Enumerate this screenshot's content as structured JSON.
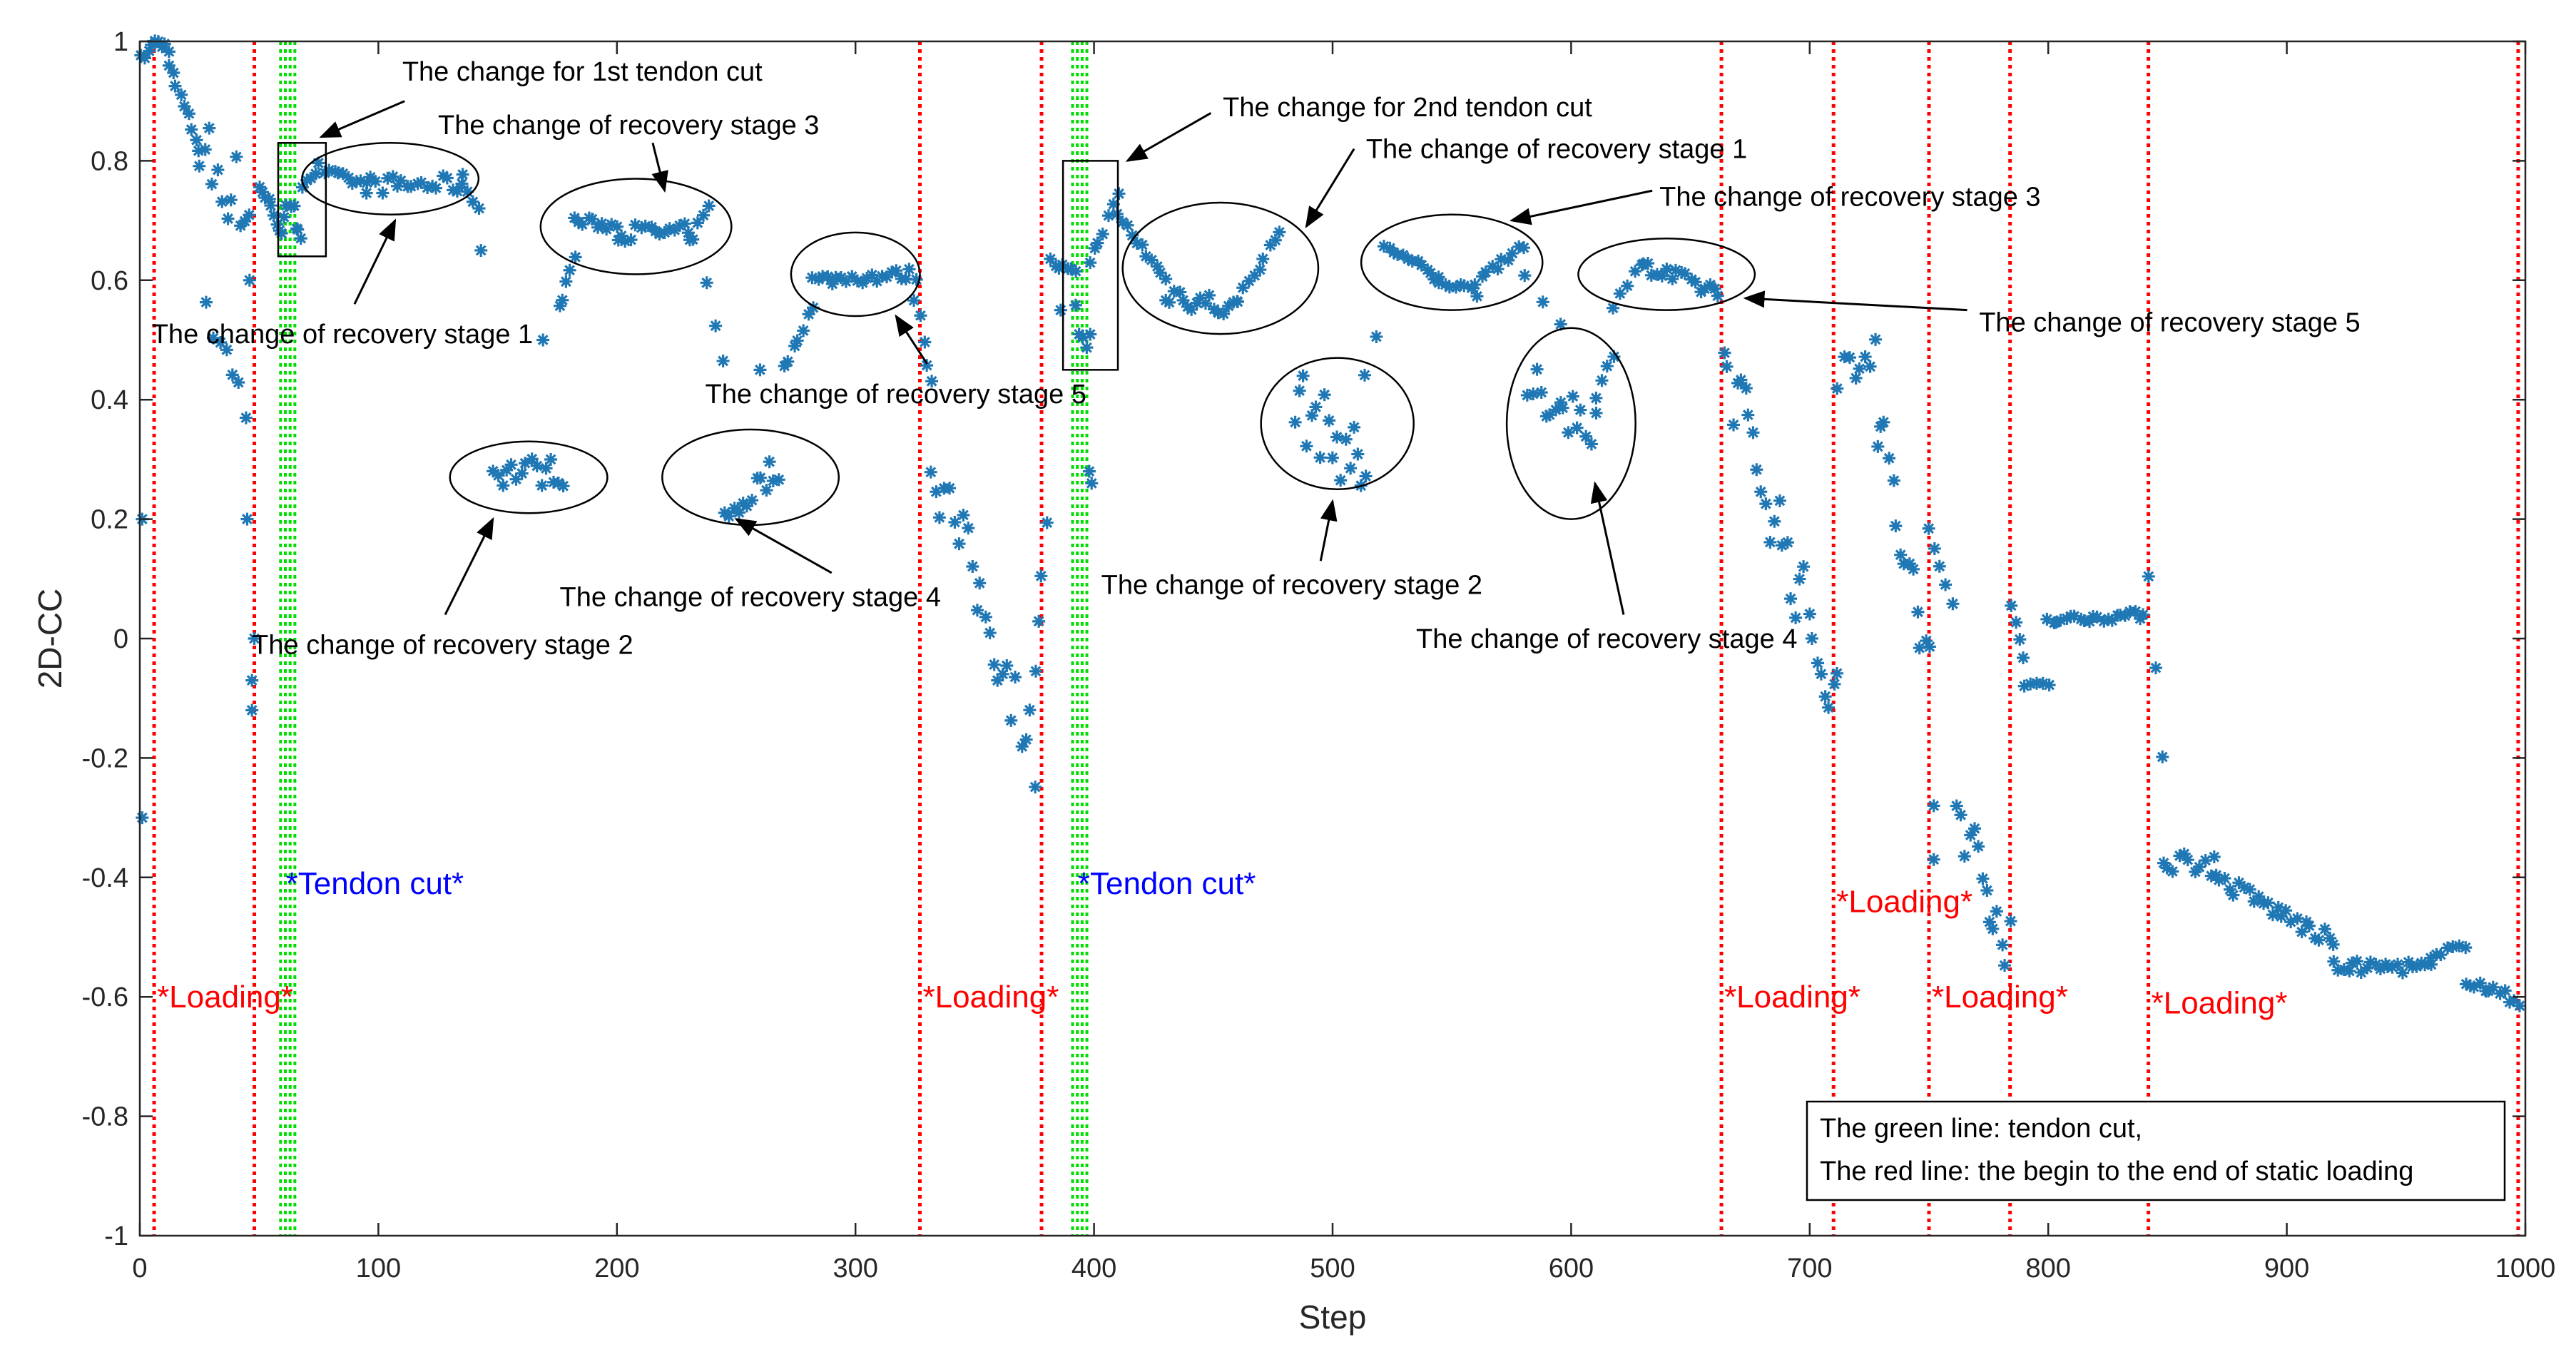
{
  "chart_data": {
    "type": "scatter",
    "xlabel": "Step",
    "ylabel": "2D-CC",
    "xlim": [
      0,
      1000
    ],
    "ylim": [
      -1,
      1
    ],
    "x_ticks": [
      "0",
      "100",
      "200",
      "300",
      "400",
      "500",
      "600",
      "700",
      "800",
      "900",
      "1000"
    ],
    "y_ticks": [
      "1",
      "0.8",
      "0.6",
      "0.4",
      "0.2",
      "0",
      "-0.2",
      "-0.4",
      "-0.6",
      "-0.8",
      "-1"
    ],
    "marker": "*",
    "marker_color": "#1f77b4",
    "red_line_color": "#ff0000",
    "green_line_color": "#00dd00",
    "red_lines": [
      6,
      48,
      327,
      378,
      663,
      710,
      750,
      784,
      842,
      997
    ],
    "green_lines": [
      59,
      61,
      63,
      65,
      391,
      393,
      395,
      397
    ],
    "loading_labels": [
      {
        "text": "*Loading*",
        "x": 6,
        "y": -0.6
      },
      {
        "text": "*Loading*",
        "x": 327,
        "y": -0.6
      },
      {
        "text": "*Loading*",
        "x": 663,
        "y": -0.6
      },
      {
        "text": "*Loading*",
        "x": 710,
        "y": -0.44
      },
      {
        "text": "*Loading*",
        "x": 750,
        "y": -0.6
      },
      {
        "text": "*Loading*",
        "x": 842,
        "y": -0.61
      }
    ],
    "tendon_labels": [
      {
        "text": "*Tendon cut*",
        "x": 60,
        "y": -0.41
      },
      {
        "text": "*Tendon cut*",
        "x": 392,
        "y": -0.41
      }
    ],
    "ellipses": [
      {
        "cx": 105,
        "cy": 0.77,
        "rx": 37,
        "ry": 0.06
      },
      {
        "cx": 208,
        "cy": 0.69,
        "rx": 40,
        "ry": 0.08
      },
      {
        "cx": 300,
        "cy": 0.61,
        "rx": 27,
        "ry": 0.07
      },
      {
        "cx": 453,
        "cy": 0.62,
        "rx": 41,
        "ry": 0.11
      },
      {
        "cx": 550,
        "cy": 0.63,
        "rx": 38,
        "ry": 0.08
      },
      {
        "cx": 640,
        "cy": 0.61,
        "rx": 37,
        "ry": 0.06
      },
      {
        "cx": 163,
        "cy": 0.27,
        "rx": 33,
        "ry": 0.06
      },
      {
        "cx": 256,
        "cy": 0.27,
        "rx": 37,
        "ry": 0.08
      },
      {
        "cx": 502,
        "cy": 0.36,
        "rx": 32,
        "ry": 0.11
      },
      {
        "cx": 600,
        "cy": 0.36,
        "rx": 27,
        "ry": 0.16
      }
    ],
    "rects": [
      {
        "x0": 58,
        "x1": 78,
        "y0": 0.64,
        "y1": 0.83
      },
      {
        "x0": 387,
        "x1": 410,
        "y0": 0.45,
        "y1": 0.8
      }
    ],
    "annotations": [
      {
        "text": "The change for 1st tendon cut",
        "x": 110,
        "y": 0.95,
        "ax": 76,
        "ay": 0.84,
        "tx": 111,
        "ty": 0.9
      },
      {
        "text": "The change of recovery stage 3",
        "x": 125,
        "y": 0.86,
        "ax": 220,
        "ay": 0.75,
        "tx": 215,
        "ty": 0.83
      },
      {
        "text": "The change of recovery stage 1",
        "x": 5,
        "y": 0.51,
        "ax": 107,
        "ay": 0.7,
        "tx": 90,
        "ty": 0.56
      },
      {
        "text": "The change of recovery stage 2",
        "x": 47,
        "y": -0.01,
        "ax": 148,
        "ay": 0.2,
        "tx": 128,
        "ty": 0.04
      },
      {
        "text": "The change of recovery stage 4",
        "x": 176,
        "y": 0.07,
        "ax": 250,
        "ay": 0.2,
        "tx": 290,
        "ty": 0.11
      },
      {
        "text": "The change of recovery stage 5",
        "x": 237,
        "y": 0.41,
        "ax": 317,
        "ay": 0.54,
        "tx": 330,
        "ty": 0.46
      },
      {
        "text": "The change for 2nd tendon cut",
        "x": 454,
        "y": 0.89,
        "ax": 414,
        "ay": 0.8,
        "tx": 449,
        "ty": 0.88
      },
      {
        "text": "The change of recovery stage 1",
        "x": 514,
        "y": 0.82,
        "ax": 489,
        "ay": 0.69,
        "tx": 509,
        "ty": 0.82
      },
      {
        "text": "The change of recovery stage 3",
        "x": 637,
        "y": 0.74,
        "ax": 575,
        "ay": 0.7,
        "tx": 634,
        "ty": 0.75
      },
      {
        "text": "The change of recovery stage 5",
        "x": 771,
        "y": 0.53,
        "ax": 673,
        "ay": 0.57,
        "tx": 766,
        "ty": 0.55
      },
      {
        "text": "The change of recovery stage 2",
        "x": 403,
        "y": 0.09,
        "ax": 500,
        "ay": 0.23,
        "tx": 495,
        "ty": 0.13
      },
      {
        "text": "The change of recovery stage 4",
        "x": 535,
        "y": 0.0,
        "ax": 610,
        "ay": 0.26,
        "tx": 622,
        "ty": 0.04
      }
    ],
    "legend": {
      "lines": [
        "The green line:  tendon cut,",
        "The red line: the begin to the end of static loading"
      ],
      "placement": "bottom-right"
    },
    "segments": [
      {
        "x0": 1,
        "x1": 5,
        "y0": 0.97,
        "y1": 0.99,
        "n": 4
      },
      {
        "x0": 6,
        "x1": 12,
        "y0": 1.0,
        "y1": 0.99,
        "n": 5
      },
      {
        "x0": 12,
        "x1": 25,
        "y0": 0.96,
        "y1": 0.82,
        "n": 9
      },
      {
        "x0": 25,
        "x1": 46,
        "y0": 0.82,
        "y1": 0.72,
        "n": 12,
        "jitter": 0.07
      },
      {
        "x0": 28,
        "x1": 44,
        "y0": 0.56,
        "y1": 0.38,
        "n": 7,
        "jitter": 0.05
      },
      {
        "x0": 50,
        "x1": 58,
        "y0": 0.76,
        "y1": 0.7,
        "n": 7
      },
      {
        "x0": 58,
        "x1": 68,
        "y0": 0.7,
        "y1": 0.7,
        "n": 9,
        "jitter": 0.03
      },
      {
        "x0": 68,
        "x1": 75,
        "y0": 0.76,
        "y1": 0.79,
        "n": 5
      },
      {
        "x0": 78,
        "x1": 95,
        "y0": 0.78,
        "y1": 0.76,
        "n": 10
      },
      {
        "x0": 95,
        "x1": 135,
        "y0": 0.76,
        "y1": 0.76,
        "n": 20,
        "jitter": 0.015
      },
      {
        "x0": 135,
        "x1": 142,
        "y0": 0.77,
        "y1": 0.72,
        "n": 4
      },
      {
        "x0": 148,
        "x1": 178,
        "y0": 0.28,
        "y1": 0.28,
        "n": 16,
        "jitter": 0.025
      },
      {
        "x0": 176,
        "x1": 182,
        "y0": 0.55,
        "y1": 0.64,
        "n": 5
      },
      {
        "x0": 182,
        "x1": 200,
        "y0": 0.7,
        "y1": 0.69,
        "n": 10
      },
      {
        "x0": 200,
        "x1": 230,
        "y0": 0.68,
        "y1": 0.68,
        "n": 16,
        "jitter": 0.015
      },
      {
        "x0": 230,
        "x1": 238,
        "y0": 0.66,
        "y1": 0.72,
        "n": 5
      },
      {
        "x0": 238,
        "x1": 244,
        "y0": 0.6,
        "y1": 0.46,
        "n": 3
      },
      {
        "x0": 245,
        "x1": 268,
        "y0": 0.2,
        "y1": 0.29,
        "n": 13,
        "jitter": 0.025
      },
      {
        "x0": 270,
        "x1": 282,
        "y0": 0.45,
        "y1": 0.56,
        "n": 7
      },
      {
        "x0": 282,
        "x1": 325,
        "y0": 0.6,
        "y1": 0.61,
        "n": 22,
        "jitter": 0.01
      },
      {
        "x0": 325,
        "x1": 332,
        "y0": 0.57,
        "y1": 0.43,
        "n": 5
      },
      {
        "x0": 332,
        "x1": 375,
        "y0": 0.3,
        "y1": -0.19,
        "n": 24,
        "jitter": 0.06
      },
      {
        "x0": 375,
        "x1": 380,
        "y0": -0.05,
        "y1": 0.19,
        "n": 4
      },
      {
        "x0": 382,
        "x1": 392,
        "y0": 0.63,
        "y1": 0.61,
        "n": 7
      },
      {
        "x0": 392,
        "x1": 398,
        "y0": 0.53,
        "y1": 0.5,
        "n": 5,
        "jitter": 0.03
      },
      {
        "x0": 398,
        "x1": 410,
        "y0": 0.63,
        "y1": 0.74,
        "n": 7
      },
      {
        "x0": 410,
        "x1": 430,
        "y0": 0.71,
        "y1": 0.6,
        "n": 11
      },
      {
        "x0": 430,
        "x1": 460,
        "y0": 0.58,
        "y1": 0.55,
        "n": 17,
        "jitter": 0.02
      },
      {
        "x0": 460,
        "x1": 478,
        "y0": 0.57,
        "y1": 0.68,
        "n": 9
      },
      {
        "x0": 484,
        "x1": 514,
        "y0": 0.4,
        "y1": 0.28,
        "n": 18,
        "jitter": 0.06
      },
      {
        "x0": 514,
        "x1": 518,
        "y0": 0.44,
        "y1": 0.5,
        "n": 2
      },
      {
        "x0": 522,
        "x1": 545,
        "y0": 0.66,
        "y1": 0.6,
        "n": 13
      },
      {
        "x0": 545,
        "x1": 560,
        "y0": 0.6,
        "y1": 0.58,
        "n": 8
      },
      {
        "x0": 560,
        "x1": 580,
        "y0": 0.6,
        "y1": 0.66,
        "n": 10
      },
      {
        "x0": 580,
        "x1": 596,
        "y0": 0.6,
        "y1": 0.52,
        "n": 3
      },
      {
        "x0": 582,
        "x1": 610,
        "y0": 0.42,
        "y1": 0.36,
        "n": 16,
        "jitter": 0.04
      },
      {
        "x0": 610,
        "x1": 618,
        "y0": 0.4,
        "y1": 0.48,
        "n": 4
      },
      {
        "x0": 618,
        "x1": 630,
        "y0": 0.56,
        "y1": 0.63,
        "n": 5
      },
      {
        "x0": 630,
        "x1": 662,
        "y0": 0.62,
        "y1": 0.58,
        "n": 17,
        "jitter": 0.015
      },
      {
        "x0": 664,
        "x1": 712,
        "y0": 0.47,
        "y1": -0.12,
        "n": 28,
        "jitter": 0.07
      },
      {
        "x0": 712,
        "x1": 728,
        "y0": 0.45,
        "y1": 0.5,
        "n": 8,
        "jitter": 0.04
      },
      {
        "x0": 728,
        "x1": 750,
        "y0": 0.37,
        "y1": -0.06,
        "n": 14,
        "jitter": 0.07
      },
      {
        "x0": 750,
        "x1": 760,
        "y0": 0.18,
        "y1": 0.06,
        "n": 5
      },
      {
        "x0": 762,
        "x1": 784,
        "y0": -0.28,
        "y1": -0.52,
        "n": 14,
        "jitter": 0.05
      },
      {
        "x0": 784,
        "x1": 790,
        "y0": 0.05,
        "y1": -0.03,
        "n": 4
      },
      {
        "x0": 790,
        "x1": 800,
        "y0": -0.08,
        "y1": -0.07,
        "n": 5
      },
      {
        "x0": 800,
        "x1": 840,
        "y0": 0.03,
        "y1": 0.04,
        "n": 22,
        "jitter": 0.007
      },
      {
        "x0": 842,
        "x1": 848,
        "y0": 0.11,
        "y1": -0.2,
        "n": 3
      },
      {
        "x0": 848,
        "x1": 870,
        "y0": -0.37,
        "y1": -0.38,
        "n": 11,
        "jitter": 0.02
      },
      {
        "x0": 870,
        "x1": 920,
        "y0": -0.4,
        "y1": -0.51,
        "n": 26,
        "jitter": 0.015
      },
      {
        "x0": 920,
        "x1": 960,
        "y0": -0.55,
        "y1": -0.55,
        "n": 22,
        "jitter": 0.01
      },
      {
        "x0": 960,
        "x1": 975,
        "y0": -0.54,
        "y1": -0.51,
        "n": 7
      },
      {
        "x0": 975,
        "x1": 997,
        "y0": -0.57,
        "y1": -0.61,
        "n": 12,
        "jitter": 0.01
      }
    ],
    "points": [
      {
        "x": 1,
        "y": 0.2
      },
      {
        "x": 1,
        "y": -0.3
      },
      {
        "x": 45,
        "y": 0.2
      },
      {
        "x": 47,
        "y": -0.07
      },
      {
        "x": 47,
        "y": -0.12
      },
      {
        "x": 48,
        "y": 0.0
      },
      {
        "x": 46,
        "y": 0.6
      },
      {
        "x": 143,
        "y": 0.65
      },
      {
        "x": 169,
        "y": 0.5
      },
      {
        "x": 260,
        "y": 0.45
      },
      {
        "x": 386,
        "y": 0.55
      },
      {
        "x": 398,
        "y": 0.28
      },
      {
        "x": 399,
        "y": 0.26
      },
      {
        "x": 752,
        "y": -0.37
      },
      {
        "x": 752,
        "y": -0.28
      }
    ]
  }
}
